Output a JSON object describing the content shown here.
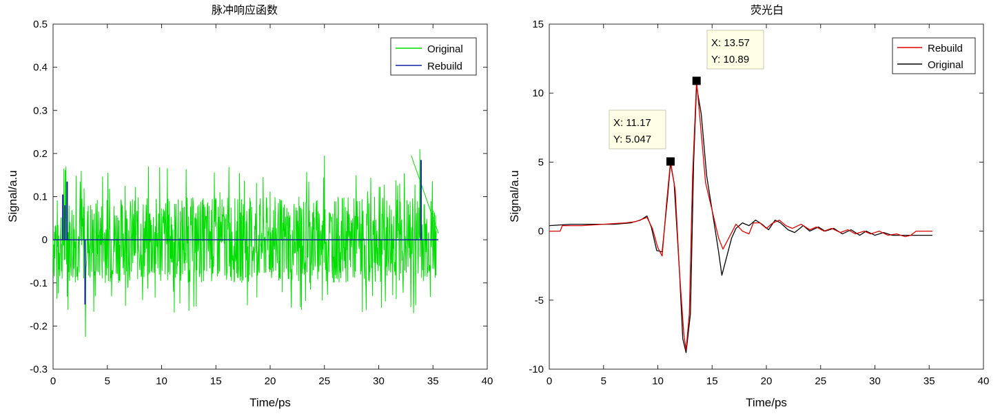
{
  "chart_data": [
    {
      "type": "line",
      "title": "脉冲响应函数",
      "xlabel": "Time/ps",
      "ylabel": "Signal/a.u",
      "xlim": [
        0,
        40
      ],
      "ylim": [
        -0.3,
        0.5
      ],
      "xticks": [
        "0",
        "5",
        "10",
        "15",
        "20",
        "25",
        "30",
        "35",
        "40"
      ],
      "yticks": [
        "-0.3",
        "-0.2",
        "-0.1",
        "0",
        "0.1",
        "0.2",
        "0.3",
        "0.4",
        "0.5"
      ],
      "legend_position": "top-right",
      "series": [
        {
          "name": "Original",
          "color": "#00dd00",
          "note_noise": "dense random oscillation approx ±0.1 with spikes to ±0.2",
          "x_start": 0,
          "x_end": 35.3,
          "spikes": [
            [
              1.0,
              0.165
            ],
            [
              1.2,
              0.17
            ],
            [
              3.0,
              -0.225
            ],
            [
              8.8,
              0.17
            ],
            [
              25.0,
              0.195
            ],
            [
              33.8,
              0.21
            ],
            [
              33.2,
              -0.17
            ],
            [
              35.5,
              0.02
            ]
          ],
          "tail": [
            [
              33.0,
              0.195
            ],
            [
              35.5,
              0.015
            ]
          ]
        },
        {
          "name": "Rebuild",
          "color": "#1020a0",
          "baseline": 0,
          "x_range": [
            0,
            35.5
          ],
          "impulses": [
            [
              0.9,
              0.105
            ],
            [
              1.1,
              0.08
            ],
            [
              1.3,
              0.135
            ],
            [
              2.95,
              -0.15
            ],
            [
              33.9,
              0.185
            ],
            [
              34.1,
              0.0
            ]
          ]
        }
      ]
    },
    {
      "type": "line",
      "title": "荧光白",
      "xlabel": "Time/ps",
      "ylabel": "Signal/a.u",
      "xlim": [
        0,
        40
      ],
      "ylim": [
        -10,
        15
      ],
      "xticks": [
        "0",
        "5",
        "10",
        "15",
        "20",
        "25",
        "30",
        "35",
        "40"
      ],
      "yticks": [
        "-10",
        "-5",
        "0",
        "5",
        "10",
        "15"
      ],
      "legend_position": "top-right",
      "series": [
        {
          "name": "Rebuild",
          "color": "#dd0000",
          "points": [
            [
              0,
              0.0
            ],
            [
              1,
              0.0
            ],
            [
              1.2,
              0.4
            ],
            [
              3,
              0.4
            ],
            [
              5,
              0.5
            ],
            [
              7,
              0.6
            ],
            [
              8,
              0.7
            ],
            [
              9,
              1.0
            ],
            [
              9.5,
              0.2
            ],
            [
              10,
              -1.2
            ],
            [
              10.4,
              -1.8
            ],
            [
              10.8,
              2.0
            ],
            [
              11.17,
              5.047
            ],
            [
              11.6,
              3.0
            ],
            [
              12.0,
              -3.0
            ],
            [
              12.4,
              -7.5
            ],
            [
              12.6,
              -8.6
            ],
            [
              12.9,
              -6.0
            ],
            [
              13.2,
              4.0
            ],
            [
              13.57,
              10.89
            ],
            [
              13.9,
              8.0
            ],
            [
              14.4,
              3.5
            ],
            [
              15.0,
              1.5
            ],
            [
              15.6,
              -0.5
            ],
            [
              16.0,
              -1.3
            ],
            [
              16.6,
              -0.4
            ],
            [
              17.2,
              0.5
            ],
            [
              17.8,
              0.0
            ],
            [
              18.4,
              -0.2
            ],
            [
              18.8,
              0.6
            ],
            [
              19.4,
              0.6
            ],
            [
              20.0,
              0.2
            ],
            [
              20.6,
              0.6
            ],
            [
              21.2,
              0.8
            ],
            [
              21.8,
              0.4
            ],
            [
              22.4,
              0.2
            ],
            [
              23.2,
              0.5
            ],
            [
              24.0,
              0.1
            ],
            [
              24.6,
              0.3
            ],
            [
              25.3,
              0.0
            ],
            [
              26.0,
              0.2
            ],
            [
              26.8,
              -0.1
            ],
            [
              27.5,
              0.1
            ],
            [
              28.2,
              -0.2
            ],
            [
              29.0,
              0.0
            ],
            [
              29.6,
              -0.2
            ],
            [
              30.4,
              0.0
            ],
            [
              31.2,
              -0.3
            ],
            [
              32.0,
              -0.2
            ],
            [
              32.8,
              -0.4
            ],
            [
              33.3,
              -0.3
            ],
            [
              33.8,
              0.0
            ],
            [
              34.6,
              0.0
            ],
            [
              35.3,
              0.0
            ]
          ]
        },
        {
          "name": "Original",
          "color": "#000000",
          "points": [
            [
              0,
              0.4
            ],
            [
              2,
              0.5
            ],
            [
              4,
              0.5
            ],
            [
              6,
              0.5
            ],
            [
              7.5,
              0.6
            ],
            [
              8.4,
              0.8
            ],
            [
              9.0,
              1.1
            ],
            [
              9.4,
              0.3
            ],
            [
              9.9,
              -1.4
            ],
            [
              10.4,
              -1.5
            ],
            [
              10.9,
              2.5
            ],
            [
              11.17,
              4.9
            ],
            [
              11.5,
              3.5
            ],
            [
              12.0,
              -3.0
            ],
            [
              12.3,
              -7.8
            ],
            [
              12.6,
              -8.8
            ],
            [
              13.0,
              -6.0
            ],
            [
              13.3,
              5.0
            ],
            [
              13.57,
              10.5
            ],
            [
              14.0,
              8.5
            ],
            [
              14.5,
              4.0
            ],
            [
              15.0,
              1.5
            ],
            [
              15.6,
              -1.5
            ],
            [
              15.9,
              -3.2
            ],
            [
              16.3,
              -2.0
            ],
            [
              16.8,
              -0.5
            ],
            [
              17.2,
              0.2
            ],
            [
              17.8,
              0.6
            ],
            [
              18.4,
              0.4
            ],
            [
              19.0,
              0.8
            ],
            [
              19.6,
              0.5
            ],
            [
              20.2,
              0.1
            ],
            [
              20.8,
              0.8
            ],
            [
              21.3,
              0.6
            ],
            [
              22.0,
              0.1
            ],
            [
              22.6,
              -0.1
            ],
            [
              23.4,
              0.4
            ],
            [
              24.0,
              0.0
            ],
            [
              24.8,
              0.3
            ],
            [
              25.4,
              0.0
            ],
            [
              26.2,
              0.2
            ],
            [
              27.0,
              -0.2
            ],
            [
              27.8,
              0.1
            ],
            [
              28.6,
              -0.3
            ],
            [
              29.2,
              0.0
            ],
            [
              30.0,
              -0.3
            ],
            [
              30.8,
              -0.1
            ],
            [
              31.6,
              -0.3
            ],
            [
              32.4,
              -0.3
            ],
            [
              33.2,
              -0.3
            ],
            [
              34.0,
              -0.3
            ],
            [
              35.3,
              -0.3
            ]
          ]
        }
      ],
      "annotations": [
        {
          "label_x": "X: 11.17",
          "label_y": "Y: 5.047",
          "x": 11.17,
          "y": 5.047
        },
        {
          "label_x": "X: 13.57",
          "label_y": "Y: 10.89",
          "x": 13.57,
          "y": 10.89
        }
      ]
    }
  ]
}
